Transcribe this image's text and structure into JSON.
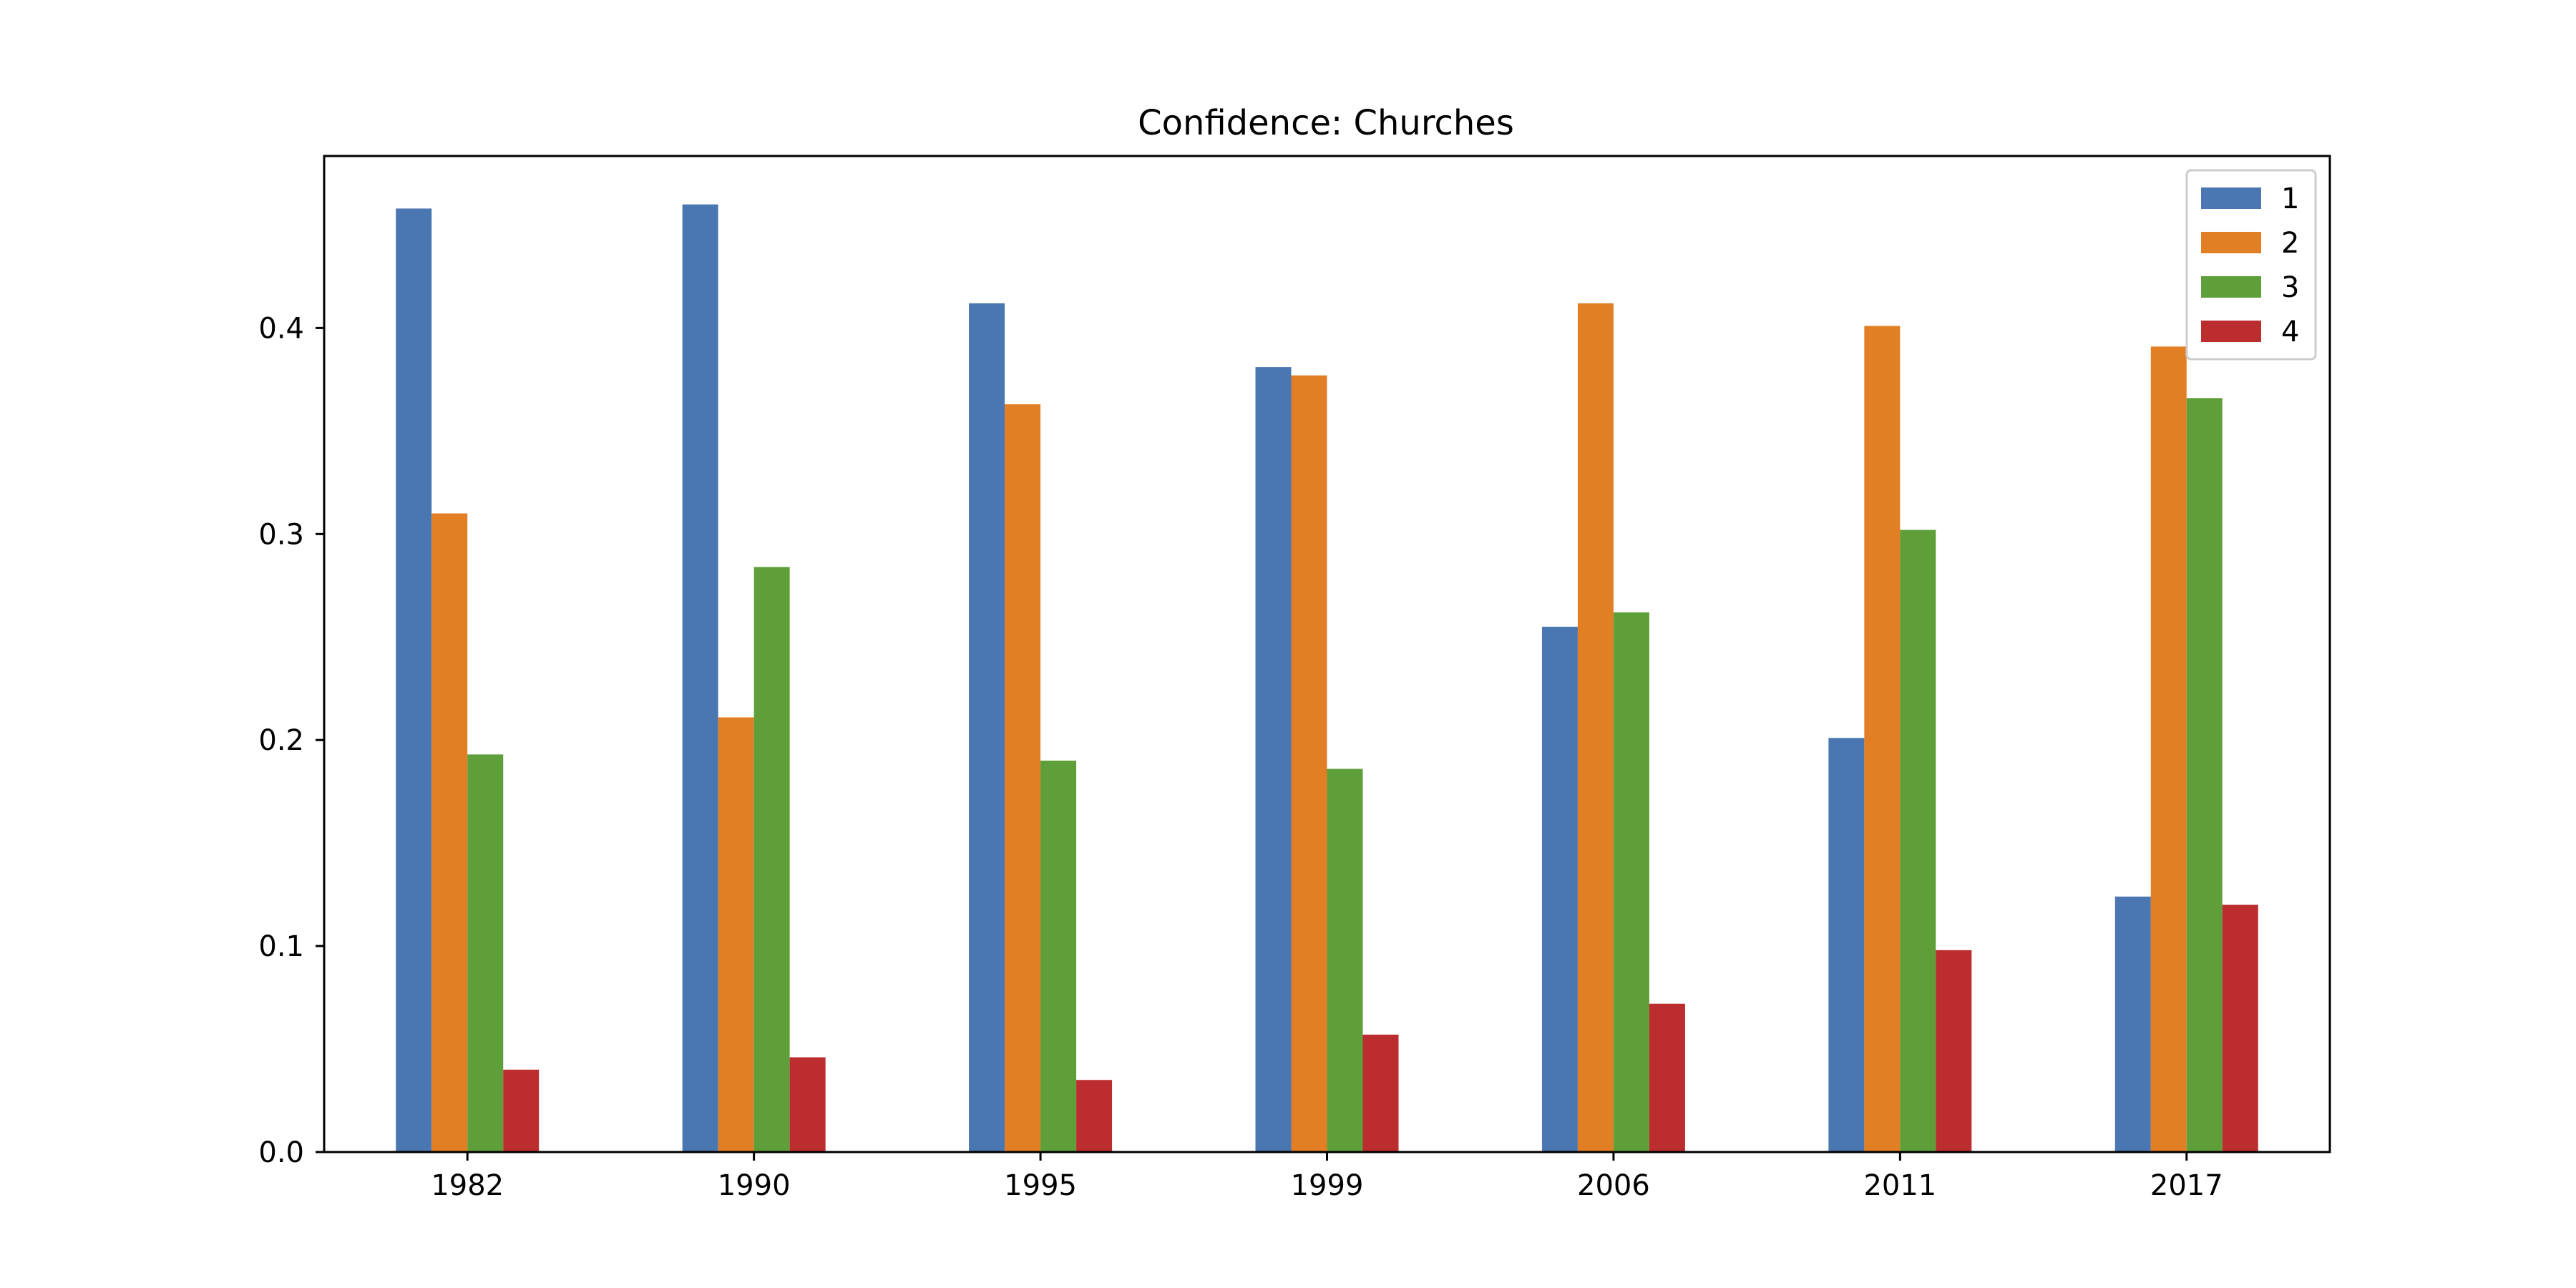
{
  "chart_data": {
    "type": "bar",
    "title": "Confidence: Churches",
    "xlabel": "",
    "ylabel": "",
    "categories": [
      "1982",
      "1990",
      "1995",
      "1999",
      "2006",
      "2011",
      "2017"
    ],
    "series": [
      {
        "name": "1",
        "color": "#4a76b1",
        "values": [
          0.458,
          0.46,
          0.412,
          0.381,
          0.255,
          0.201,
          0.124
        ]
      },
      {
        "name": "2",
        "color": "#e27f25",
        "values": [
          0.31,
          0.211,
          0.363,
          0.377,
          0.412,
          0.401,
          0.391
        ]
      },
      {
        "name": "3",
        "color": "#5f9f3a",
        "values": [
          0.193,
          0.284,
          0.19,
          0.186,
          0.262,
          0.302,
          0.366
        ]
      },
      {
        "name": "4",
        "color": "#bb2d2f",
        "values": [
          0.04,
          0.046,
          0.035,
          0.057,
          0.072,
          0.098,
          0.12
        ]
      }
    ],
    "ylim": [
      0,
      0.4835
    ],
    "yticks": [
      "0.0",
      "0.1",
      "0.2",
      "0.3",
      "0.4"
    ],
    "grid": false,
    "legend": "top-right"
  }
}
